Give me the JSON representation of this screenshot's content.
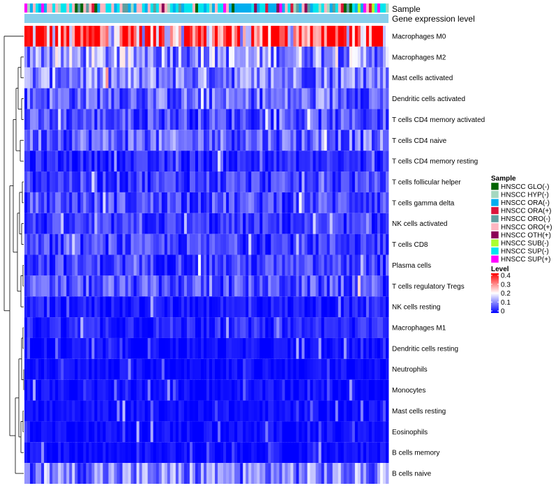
{
  "chart_data": {
    "type": "heatmap",
    "annotation_labels": {
      "sample": "Sample",
      "gene_expression": "Gene expression level"
    },
    "rows": [
      "Macrophages M0",
      "Macrophages M2",
      "Mast cells activated",
      "Dendritic cells activated",
      "T cells CD4 memory activated",
      "T cells CD4 naive",
      "T cells CD4 memory resting",
      "T cells follicular helper",
      "T cells gamma delta",
      "NK cells activated",
      "T cells CD8",
      "Plasma cells",
      "T cells regulatory  Tregs",
      "NK cells resting",
      "Macrophages M1",
      "Dendritic cells resting",
      "Neutrophils",
      "Monocytes",
      "Mast cells resting",
      "Eosinophils",
      "B cells memory",
      "B cells naive"
    ],
    "row_mean_level": [
      0.32,
      0.12,
      0.1,
      0.08,
      0.06,
      0.08,
      0.03,
      0.05,
      0.06,
      0.04,
      0.05,
      0.05,
      0.06,
      0.02,
      0.03,
      0.01,
      0.01,
      0.01,
      0.01,
      0.01,
      0.01,
      0.1
    ],
    "sample_legend": {
      "title": "Sample",
      "entries": [
        {
          "label": "HNSCC GLO(-)",
          "color": "#006400"
        },
        {
          "label": "HNSCC HYP(-)",
          "color": "#a6d8c0"
        },
        {
          "label": "HNSCC ORA(-)",
          "color": "#00aeef"
        },
        {
          "label": "HNSCC ORA(+)",
          "color": "#dc143c"
        },
        {
          "label": "HNSCC ORO(-)",
          "color": "#5f9ea0"
        },
        {
          "label": "HNSCC ORO(+)",
          "color": "#ffb6c1"
        },
        {
          "label": "HNSCC OTH(+)",
          "color": "#8b0057"
        },
        {
          "label": "HNSCC SUB(-)",
          "color": "#adff2f"
        },
        {
          "label": "HNSCC SUP(-)",
          "color": "#00e5ee"
        },
        {
          "label": "HNSCC SUP(+)",
          "color": "#ff00ff"
        }
      ]
    },
    "level_legend": {
      "title": "Level",
      "ticks": [
        "0.4",
        "0.3",
        "0.2",
        "0.1",
        "0"
      ],
      "range": [
        0,
        0.4
      ],
      "colors": {
        "low": "#0000ff",
        "mid": "#ffffff",
        "high": "#ff0000"
      }
    },
    "gene_expression_color": "#87ceeb",
    "n_columns": 130
  }
}
